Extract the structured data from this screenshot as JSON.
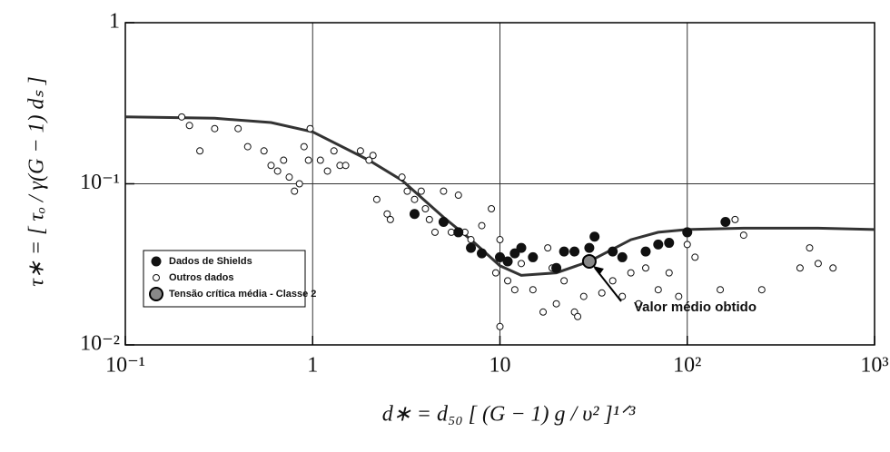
{
  "chart_data": {
    "type": "scatter",
    "x_label": "d∗ = d₅₀ [ (G − 1) g / υ² ]¹ᐟ³",
    "y_label": "τ∗ = [ τₒ / γ(G − 1) dₛ ]",
    "log_x": true,
    "log_y": true,
    "grid": true,
    "legend": "lower left",
    "xlim": [
      0.1,
      1000
    ],
    "ylim": [
      0.01,
      1
    ],
    "xticks": [
      {
        "value": 0.1,
        "label": "10⁻¹"
      },
      1,
      10,
      {
        "value": 100,
        "label": "10²"
      },
      {
        "value": 1000,
        "label": "10³"
      }
    ],
    "yticks": [
      {
        "value": 0.01,
        "label": "10⁻²"
      },
      {
        "value": 0.1,
        "label": "10⁻¹"
      },
      1
    ],
    "curve": {
      "color": "#333333",
      "x": [
        0.1,
        0.3,
        0.6,
        1,
        2,
        3,
        5,
        7,
        10,
        13,
        20,
        30,
        50,
        70,
        100,
        200,
        500,
        1000
      ],
      "y": [
        0.26,
        0.255,
        0.24,
        0.21,
        0.14,
        0.105,
        0.062,
        0.045,
        0.031,
        0.027,
        0.028,
        0.033,
        0.045,
        0.05,
        0.052,
        0.053,
        0.053,
        0.052
      ]
    },
    "series": [
      {
        "name": "Dados de Shields",
        "color": "#111111",
        "marker": "filled",
        "x": [
          3.5,
          5,
          6,
          7,
          8,
          10,
          11,
          12,
          13,
          15,
          20,
          22,
          25,
          30,
          32,
          40,
          45,
          60,
          70,
          80,
          100,
          160
        ],
        "values": [
          0.065,
          0.058,
          0.05,
          0.04,
          0.037,
          0.035,
          0.033,
          0.037,
          0.04,
          0.035,
          0.03,
          0.038,
          0.038,
          0.04,
          0.047,
          0.038,
          0.035,
          0.038,
          0.042,
          0.043,
          0.05,
          0.058
        ]
      },
      {
        "name": "Outros dados",
        "color": "#111111",
        "marker": "open",
        "x": [
          0.2,
          0.22,
          0.25,
          0.3,
          0.4,
          0.45,
          0.55,
          0.6,
          0.65,
          0.7,
          0.75,
          0.8,
          0.85,
          0.9,
          0.95,
          0.97,
          1.1,
          1.2,
          1.3,
          1.4,
          1.5,
          1.8,
          2,
          2.1,
          2.2,
          2.5,
          2.6,
          3,
          3.2,
          3.5,
          3.8,
          4,
          4.2,
          4.5,
          5,
          5.5,
          6,
          6.5,
          7,
          8,
          9,
          10,
          11,
          9.5,
          10,
          12,
          13,
          15,
          17,
          18,
          19,
          20,
          22,
          25,
          26,
          28,
          35,
          40,
          45,
          50,
          55,
          60,
          70,
          80,
          90,
          100,
          110,
          150,
          180,
          200,
          250,
          400,
          450,
          500,
          600
        ],
        "values": [
          0.26,
          0.23,
          0.16,
          0.22,
          0.22,
          0.17,
          0.16,
          0.13,
          0.12,
          0.14,
          0.11,
          0.09,
          0.1,
          0.17,
          0.14,
          0.22,
          0.14,
          0.12,
          0.16,
          0.13,
          0.13,
          0.16,
          0.14,
          0.15,
          0.08,
          0.065,
          0.06,
          0.11,
          0.09,
          0.08,
          0.09,
          0.07,
          0.06,
          0.05,
          0.09,
          0.05,
          0.085,
          0.05,
          0.045,
          0.055,
          0.07,
          0.045,
          0.025,
          0.028,
          0.013,
          0.022,
          0.032,
          0.022,
          0.016,
          0.04,
          0.03,
          0.018,
          0.025,
          0.016,
          0.015,
          0.02,
          0.021,
          0.025,
          0.02,
          0.028,
          0.018,
          0.03,
          0.022,
          0.028,
          0.02,
          0.042,
          0.035,
          0.022,
          0.06,
          0.048,
          0.022,
          0.03,
          0.04,
          0.032,
          0.03
        ]
      },
      {
        "name": "Tensão crítica média - Classe 2",
        "color": "#888888",
        "marker": "big",
        "x": [
          30
        ],
        "values": [
          0.033
        ]
      }
    ],
    "annotation": "Valor médio obtido"
  }
}
